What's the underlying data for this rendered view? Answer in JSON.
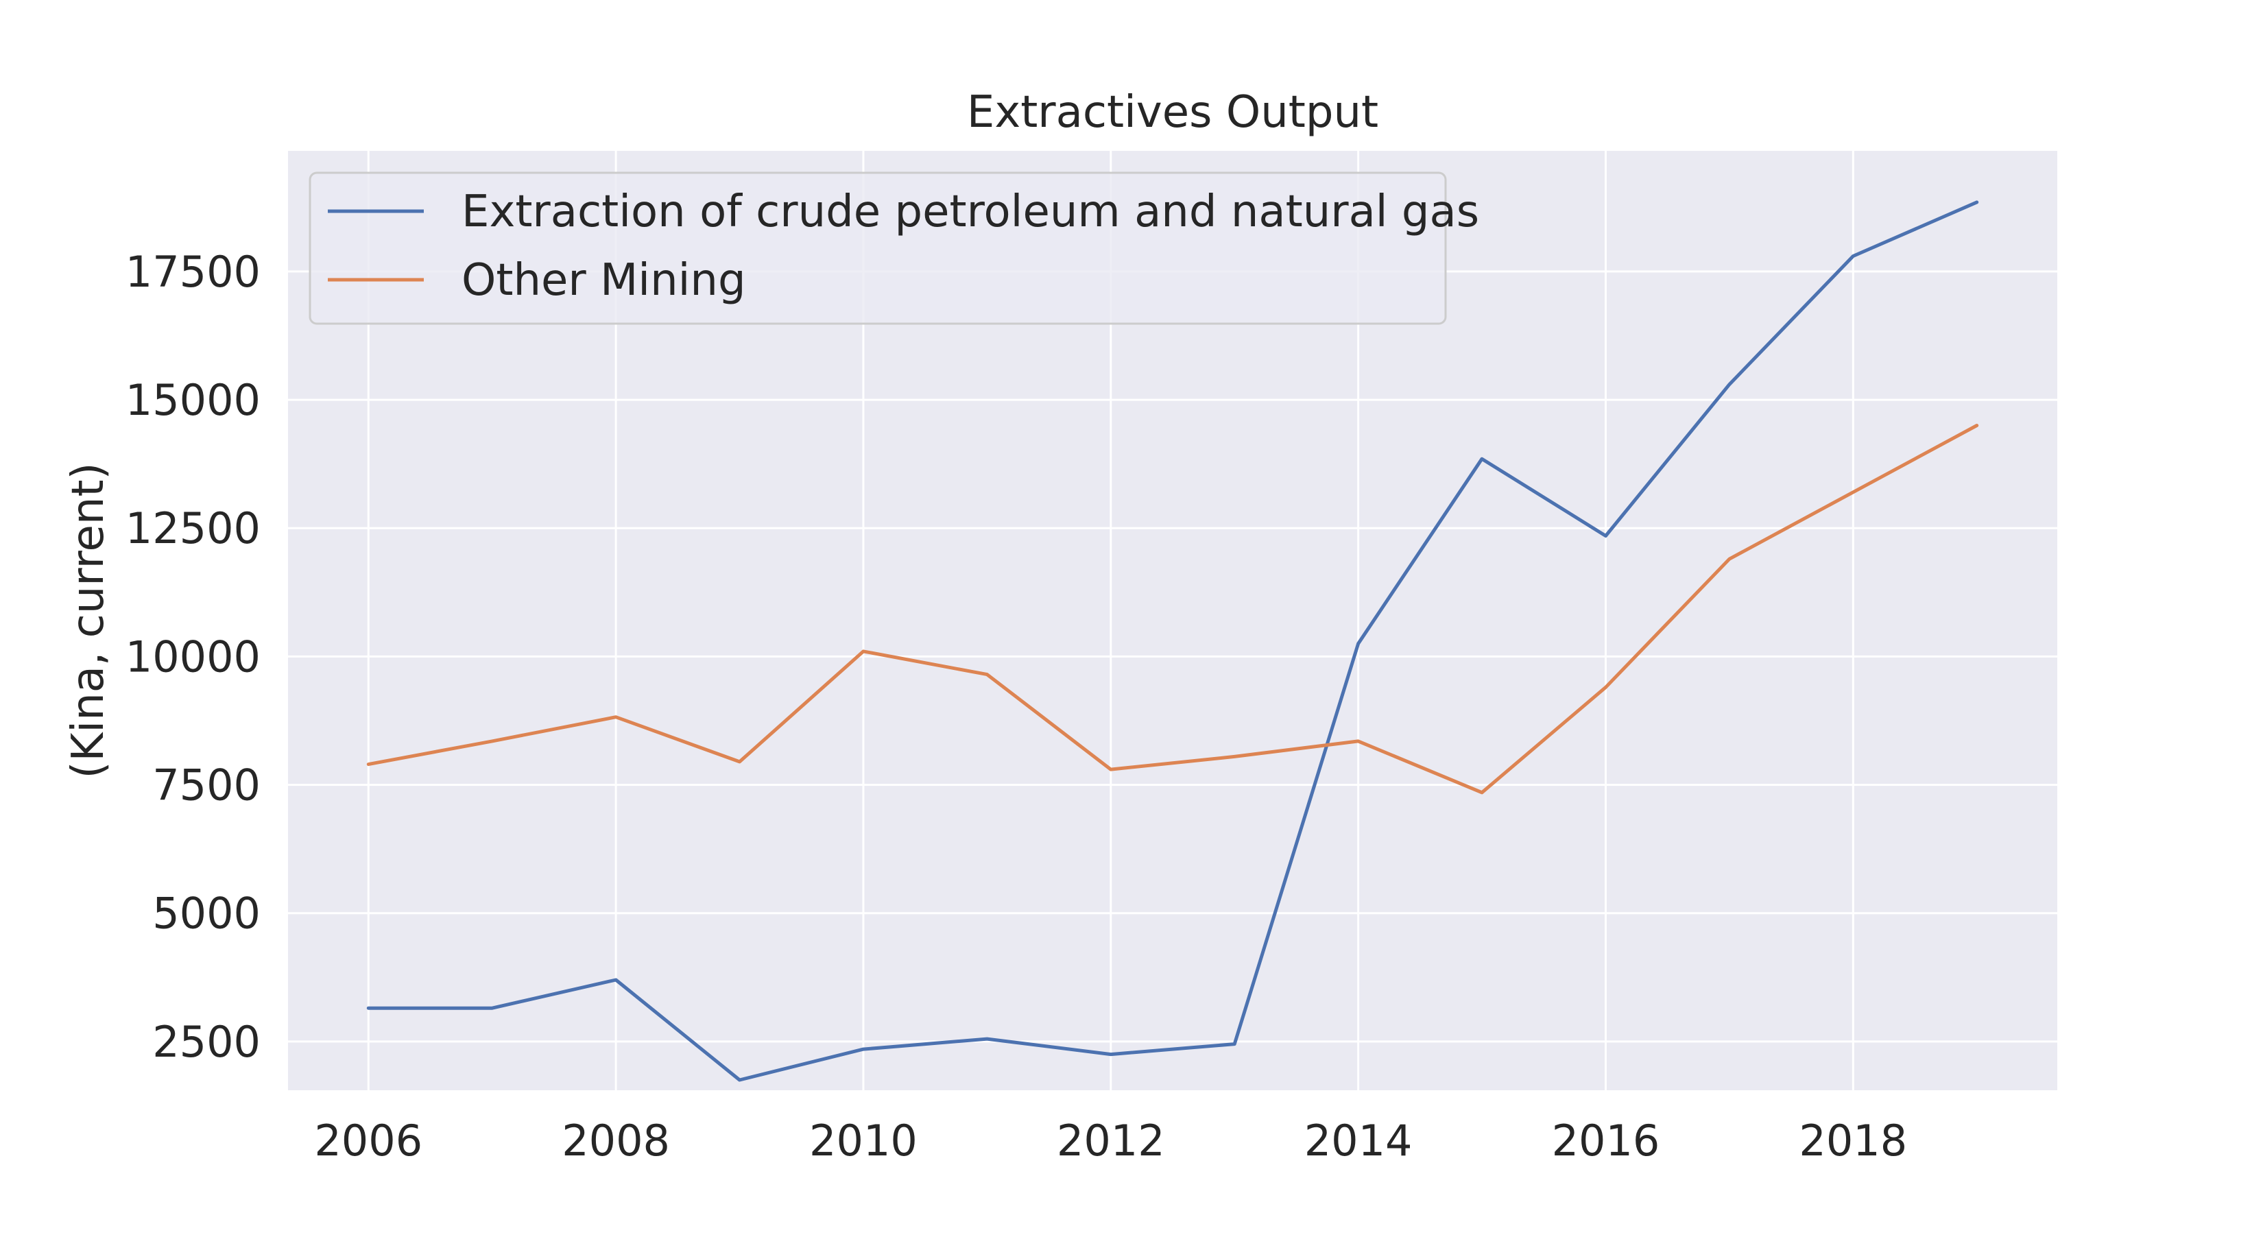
{
  "chart_data": {
    "type": "line",
    "title": "Extractives Output",
    "xlabel": "",
    "ylabel": "(Kina, current)",
    "x": [
      2006,
      2007,
      2008,
      2009,
      2010,
      2011,
      2012,
      2013,
      2014,
      2015,
      2016,
      2017,
      2018,
      2019
    ],
    "xticks": [
      2006,
      2008,
      2010,
      2012,
      2014,
      2016,
      2018
    ],
    "yticks": [
      2500,
      5000,
      7500,
      10000,
      12500,
      15000,
      17500
    ],
    "xlim": [
      2005.35,
      2019.65
    ],
    "ylim": [
      1550,
      19850
    ],
    "grid": true,
    "legend_position": "top-left",
    "series": [
      {
        "name": "Extraction of crude petroleum and natural gas",
        "color": "#4c72b0",
        "values": [
          3150,
          3150,
          3700,
          1750,
          2350,
          2550,
          2250,
          2450,
          10250,
          13850,
          12350,
          15300,
          17800,
          18850
        ]
      },
      {
        "name": "Other Mining",
        "color": "#dd8452",
        "values": [
          7900,
          8350,
          8820,
          7950,
          10100,
          9650,
          7800,
          8050,
          8350,
          7350,
          9400,
          11900,
          13200,
          14500
        ]
      }
    ]
  },
  "colors": {
    "plot_background": "#eaeaf2",
    "grid": "#ffffff",
    "text": "#262626"
  }
}
